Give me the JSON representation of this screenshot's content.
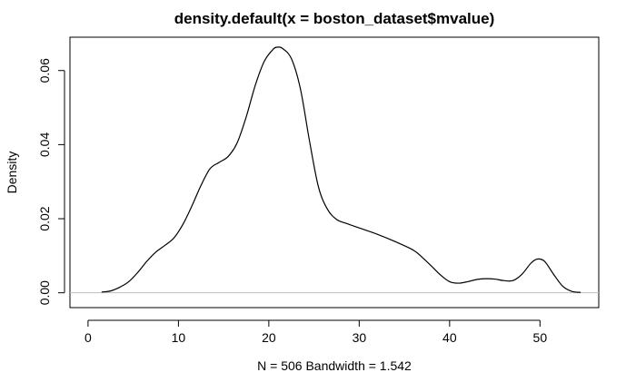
{
  "chart_data": {
    "type": "line",
    "title": "density.default(x = boston_dataset$mvalue)",
    "xlabel": "N = 506   Bandwidth = 1.542",
    "ylabel": "Density",
    "xlim": [
      -2,
      56.5
    ],
    "ylim": [
      -0.004,
      0.069
    ],
    "x_ticks": [
      0,
      10,
      20,
      30,
      40,
      50
    ],
    "x_tick_labels": [
      "0",
      "10",
      "20",
      "30",
      "40",
      "50"
    ],
    "y_ticks": [
      0.0,
      0.02,
      0.04,
      0.06
    ],
    "y_tick_labels": [
      "0.00",
      "0.02",
      "0.04",
      "0.06"
    ],
    "baseline": 0,
    "grid": false,
    "legend": "none",
    "line_color": "#000000",
    "baseline_color": "#bebebe",
    "series": [
      {
        "x": [
          1.5,
          2.5,
          3.5,
          4.5,
          5.5,
          6.5,
          7.5,
          8.5,
          9.5,
          10.5,
          11.5,
          12.5,
          13.5,
          14.5,
          15.5,
          16.5,
          17.5,
          18.5,
          19.5,
          20.5,
          21.0,
          21.5,
          22.5,
          23.5,
          24.5,
          25.5,
          26.5,
          27.5,
          28.5,
          30,
          32,
          34,
          36,
          37,
          38,
          39,
          40,
          41,
          42,
          43,
          44,
          45,
          46,
          47,
          48,
          49,
          49.7,
          50.5,
          51.5,
          52.5,
          53.5,
          54.5
        ],
        "y": [
          0.0002,
          0.0005,
          0.0015,
          0.003,
          0.0055,
          0.0085,
          0.011,
          0.0128,
          0.0148,
          0.0185,
          0.0235,
          0.029,
          0.0335,
          0.0352,
          0.0368,
          0.0405,
          0.0475,
          0.056,
          0.0625,
          0.0658,
          0.0663,
          0.066,
          0.0632,
          0.055,
          0.041,
          0.0285,
          0.0225,
          0.0198,
          0.0188,
          0.0175,
          0.0158,
          0.0138,
          0.0115,
          0.0095,
          0.0072,
          0.0048,
          0.003,
          0.0026,
          0.003,
          0.0036,
          0.0038,
          0.0037,
          0.0033,
          0.0033,
          0.005,
          0.008,
          0.0091,
          0.0085,
          0.005,
          0.0018,
          0.0004,
          0.0001
        ]
      }
    ]
  }
}
